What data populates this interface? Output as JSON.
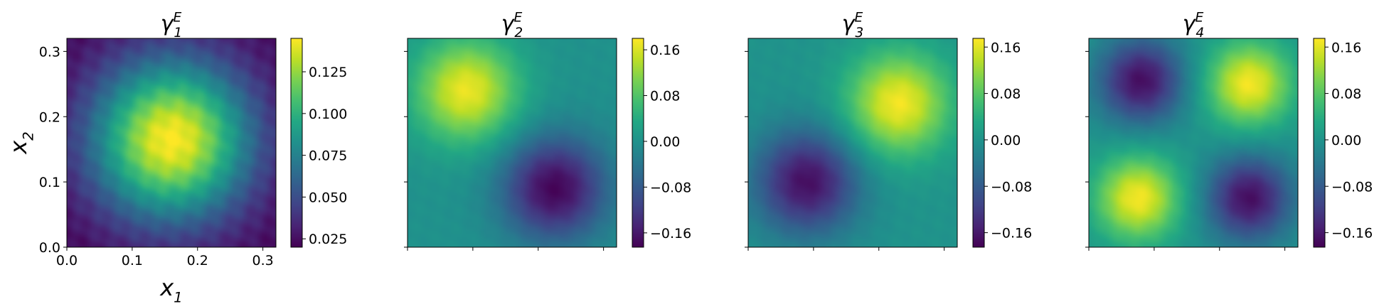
{
  "chart_data": [
    {
      "type": "heatmap",
      "title": "γ",
      "title_sub": "1",
      "title_sup": "E",
      "xlabel": "x",
      "xlabel_sub": "1",
      "ylabel": "x",
      "ylabel_sub": "2",
      "xlim": [
        0.0,
        0.32
      ],
      "ylim": [
        0.0,
        0.32
      ],
      "xticks": [
        "0.0",
        "0.1",
        "0.2",
        "0.3"
      ],
      "yticks": [
        "0.0",
        "0.1",
        "0.2",
        "0.3"
      ],
      "colorbar": {
        "range": [
          0.02,
          0.145
        ],
        "ticks": [
          "0.025",
          "0.050",
          "0.075",
          "0.100",
          "0.125"
        ],
        "tick_values": [
          0.025,
          0.05,
          0.075,
          0.1,
          0.125
        ]
      },
      "field": {
        "base": 0.02,
        "blobs": [
          {
            "x": 0.16,
            "y": 0.165,
            "amp": 0.125,
            "sigma": 0.085
          }
        ]
      }
    },
    {
      "type": "heatmap",
      "title": "γ",
      "title_sub": "2",
      "title_sup": "E",
      "xlim": [
        0.0,
        0.32
      ],
      "ylim": [
        0.0,
        0.32
      ],
      "colorbar": {
        "range": [
          -0.185,
          0.18
        ],
        "ticks": [
          "0.16",
          "0.08",
          "0.00",
          "−0.08",
          "−0.16"
        ],
        "tick_values": [
          0.16,
          0.08,
          0.0,
          -0.08,
          -0.16
        ]
      },
      "field": {
        "base": 0.0,
        "blobs": [
          {
            "x": 0.09,
            "y": 0.24,
            "amp": 0.17,
            "sigma": 0.055
          },
          {
            "x": 0.225,
            "y": 0.09,
            "amp": -0.18,
            "sigma": 0.055
          }
        ]
      }
    },
    {
      "type": "heatmap",
      "title": "γ",
      "title_sub": "3",
      "title_sup": "E",
      "xlim": [
        0.0,
        0.32
      ],
      "ylim": [
        0.0,
        0.32
      ],
      "colorbar": {
        "range": [
          -0.185,
          0.175
        ],
        "ticks": [
          "0.16",
          "0.08",
          "0.00",
          "−0.08",
          "−0.16"
        ],
        "tick_values": [
          0.16,
          0.08,
          0.0,
          -0.08,
          -0.16
        ]
      },
      "field": {
        "base": 0.0,
        "blobs": [
          {
            "x": 0.23,
            "y": 0.22,
            "amp": 0.17,
            "sigma": 0.055
          },
          {
            "x": 0.09,
            "y": 0.1,
            "amp": -0.17,
            "sigma": 0.055
          }
        ]
      }
    },
    {
      "type": "heatmap",
      "title": "γ",
      "title_sub": "4",
      "title_sup": "E",
      "xlim": [
        0.0,
        0.32
      ],
      "ylim": [
        0.0,
        0.32
      ],
      "colorbar": {
        "range": [
          -0.185,
          0.175
        ],
        "ticks": [
          "0.16",
          "0.08",
          "0.00",
          "−0.08",
          "−0.16"
        ],
        "tick_values": [
          0.16,
          0.08,
          0.0,
          -0.08,
          -0.16
        ]
      },
      "field": {
        "base": 0.0,
        "blobs": [
          {
            "x": 0.245,
            "y": 0.25,
            "amp": 0.17,
            "sigma": 0.045
          },
          {
            "x": 0.075,
            "y": 0.075,
            "amp": 0.17,
            "sigma": 0.045
          },
          {
            "x": 0.08,
            "y": 0.255,
            "amp": -0.17,
            "sigma": 0.045
          },
          {
            "x": 0.245,
            "y": 0.075,
            "amp": -0.17,
            "sigma": 0.045
          }
        ]
      }
    }
  ]
}
